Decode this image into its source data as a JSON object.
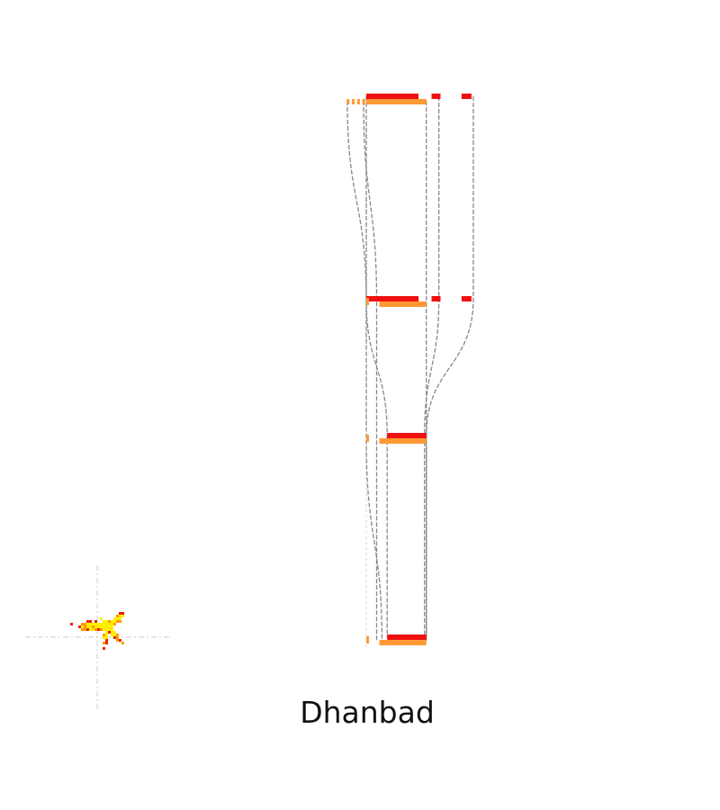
{
  "chart_data": {
    "type": "other",
    "description_kind": "urban growth spatial profile",
    "title": "Dhanbad",
    "layers": [
      {
        "name": "layer-1",
        "red": [
          0.0,
          0.57
        ],
        "orange": [
          0.0,
          0.46
        ],
        "outer": [
          -0.18,
          0.82
        ]
      },
      {
        "name": "layer-2",
        "red": [
          0.0,
          0.57
        ],
        "orange": [
          0.1,
          0.46
        ],
        "outer": [
          0.0,
          0.82
        ]
      },
      {
        "name": "layer-3",
        "red": [
          0.16,
          0.46
        ],
        "orange": [
          0.1,
          0.46
        ],
        "outer": [
          0.0,
          0.46
        ]
      },
      {
        "name": "layer-4",
        "red": [
          0.16,
          0.46
        ],
        "orange": [
          0.1,
          0.46
        ],
        "outer": [
          0.12,
          0.46
        ]
      }
    ],
    "colors": {
      "red": "#ee1111",
      "orange": "#ff9933",
      "outline": "#888888",
      "blob_yellow": "#ffee00",
      "blob_orange": "#ff9900",
      "blob_red": "#ee2200",
      "crosshair": "#cccccc"
    }
  }
}
